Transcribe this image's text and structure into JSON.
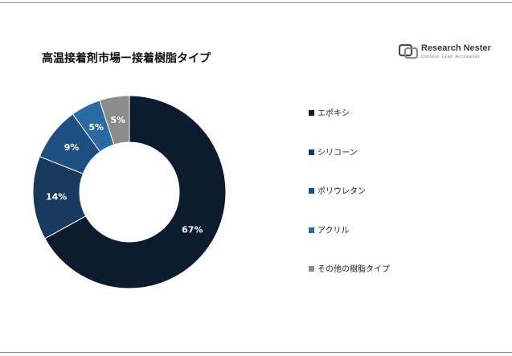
{
  "title": "高温接着剤市場ー接着樹脂タイプ",
  "logo": {
    "name_part1": "Research",
    "name_part2": "Nester",
    "tagline": "Connect. Lead. Accomplish",
    "icon": "research-nester-logo-icon"
  },
  "colors": {
    "rule": "#8c8c8c"
  },
  "chart_data": {
    "type": "pie",
    "donut": true,
    "title": "高温接着剤市場ー接着樹脂タイプ",
    "categories": [
      "エポキシ",
      "シリコーン",
      "ポリウレタン",
      "アクリル",
      "その他の樹脂タイプ"
    ],
    "values": [
      67,
      14,
      9,
      5,
      5
    ],
    "value_labels": [
      "67%",
      "14%",
      "9%",
      "5%",
      "5%"
    ],
    "colors": [
      "#0c1b2e",
      "#173a5e",
      "#1e4f80",
      "#2b6aa3",
      "#8c8c8c"
    ],
    "start_angle_deg": 0,
    "direction": "clockwise",
    "legend_position": "right"
  }
}
